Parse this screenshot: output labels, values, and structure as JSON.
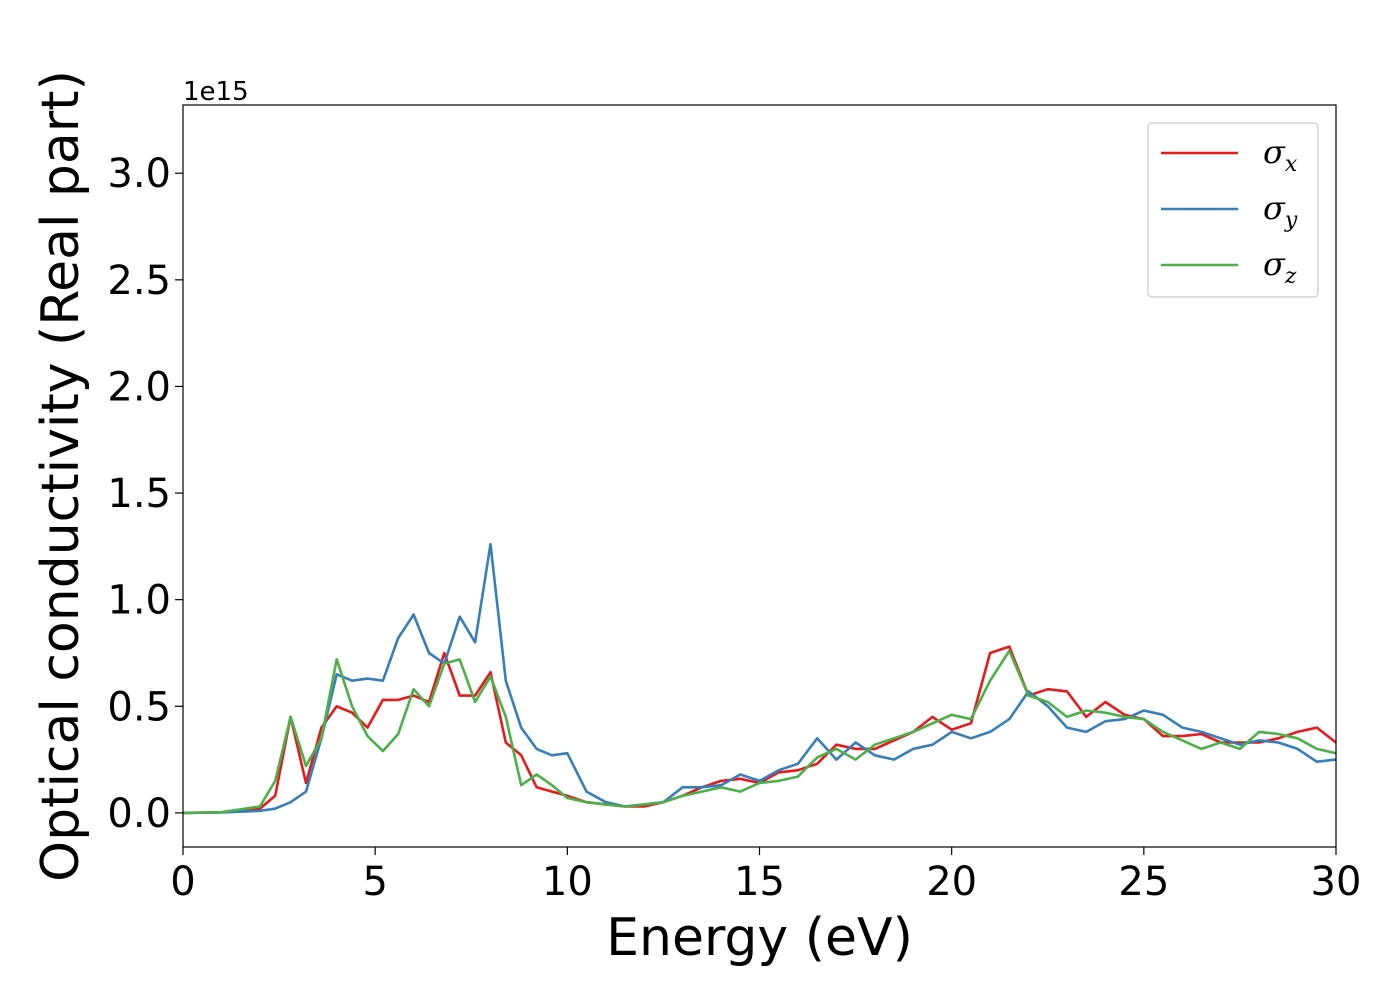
{
  "chart_data": {
    "type": "line",
    "xlabel": "Energy (eV)",
    "ylabel": "Optical conductivity (Real part)",
    "y_offset_label": "1e15",
    "xlim": [
      0,
      30
    ],
    "ylim": [
      -0.16,
      3.32
    ],
    "x_ticks": [
      0,
      5,
      10,
      15,
      20,
      25,
      30
    ],
    "x_tick_labels": [
      "0",
      "5",
      "10",
      "15",
      "20",
      "25",
      "30"
    ],
    "y_ticks": [
      0.0,
      0.5,
      1.0,
      1.5,
      2.0,
      2.5,
      3.0
    ],
    "y_tick_labels": [
      "0.0",
      "0.5",
      "1.0",
      "1.5",
      "2.0",
      "2.5",
      "3.0"
    ],
    "grid": false,
    "legend_position": "top-right",
    "x": [
      0,
      1,
      2,
      2.4,
      2.8,
      3.2,
      3.6,
      4.0,
      4.4,
      4.8,
      5.2,
      5.6,
      6.0,
      6.4,
      6.8,
      7.2,
      7.6,
      8.0,
      8.4,
      8.8,
      9.2,
      9.6,
      10.0,
      10.5,
      11.0,
      11.5,
      12.0,
      12.5,
      13.0,
      13.5,
      14.0,
      14.5,
      15.0,
      15.5,
      16.0,
      16.5,
      17.0,
      17.5,
      18.0,
      18.5,
      19.0,
      19.5,
      20.0,
      20.5,
      21.0,
      21.5,
      22.0,
      22.5,
      23.0,
      23.5,
      24.0,
      24.5,
      25.0,
      25.5,
      26.0,
      26.5,
      27.0,
      27.5,
      28.0,
      28.5,
      29.0,
      29.5,
      30.0
    ],
    "series": [
      {
        "name": "σx",
        "symbol": "σ",
        "subscript": "x",
        "color": "#e41a1c",
        "values": [
          0,
          0.003,
          0.02,
          0.08,
          0.45,
          0.14,
          0.4,
          0.5,
          0.47,
          0.4,
          0.53,
          0.53,
          0.55,
          0.52,
          0.75,
          0.55,
          0.55,
          0.66,
          0.33,
          0.27,
          0.12,
          0.1,
          0.08,
          0.05,
          0.04,
          0.03,
          0.03,
          0.05,
          0.08,
          0.12,
          0.15,
          0.16,
          0.14,
          0.19,
          0.2,
          0.23,
          0.32,
          0.3,
          0.3,
          0.34,
          0.38,
          0.45,
          0.39,
          0.42,
          0.75,
          0.78,
          0.55,
          0.58,
          0.57,
          0.45,
          0.52,
          0.46,
          0.44,
          0.36,
          0.36,
          0.37,
          0.33,
          0.33,
          0.33,
          0.35,
          0.38,
          0.4,
          0.33
        ]
      },
      {
        "name": "σy",
        "symbol": "σ",
        "subscript": "y",
        "color": "#377eb8",
        "values": [
          0,
          0.002,
          0.01,
          0.02,
          0.05,
          0.1,
          0.35,
          0.65,
          0.62,
          0.63,
          0.62,
          0.82,
          0.93,
          0.75,
          0.7,
          0.92,
          0.8,
          1.26,
          0.62,
          0.4,
          0.3,
          0.27,
          0.28,
          0.1,
          0.05,
          0.03,
          0.04,
          0.05,
          0.12,
          0.12,
          0.13,
          0.18,
          0.15,
          0.2,
          0.23,
          0.35,
          0.25,
          0.33,
          0.27,
          0.25,
          0.3,
          0.32,
          0.38,
          0.35,
          0.38,
          0.44,
          0.57,
          0.5,
          0.4,
          0.38,
          0.43,
          0.44,
          0.48,
          0.46,
          0.4,
          0.38,
          0.35,
          0.32,
          0.34,
          0.33,
          0.3,
          0.24,
          0.25
        ]
      },
      {
        "name": "σz",
        "symbol": "σ",
        "subscript": "z",
        "color": "#4daf4a",
        "values": [
          0,
          0.003,
          0.03,
          0.15,
          0.45,
          0.22,
          0.35,
          0.72,
          0.5,
          0.36,
          0.29,
          0.37,
          0.58,
          0.5,
          0.7,
          0.72,
          0.52,
          0.64,
          0.45,
          0.13,
          0.18,
          0.13,
          0.07,
          0.05,
          0.04,
          0.03,
          0.04,
          0.05,
          0.08,
          0.1,
          0.12,
          0.1,
          0.14,
          0.15,
          0.17,
          0.26,
          0.3,
          0.25,
          0.32,
          0.35,
          0.38,
          0.42,
          0.46,
          0.44,
          0.62,
          0.76,
          0.55,
          0.52,
          0.45,
          0.48,
          0.47,
          0.45,
          0.44,
          0.38,
          0.34,
          0.3,
          0.33,
          0.3,
          0.38,
          0.37,
          0.35,
          0.3,
          0.28
        ]
      }
    ]
  }
}
